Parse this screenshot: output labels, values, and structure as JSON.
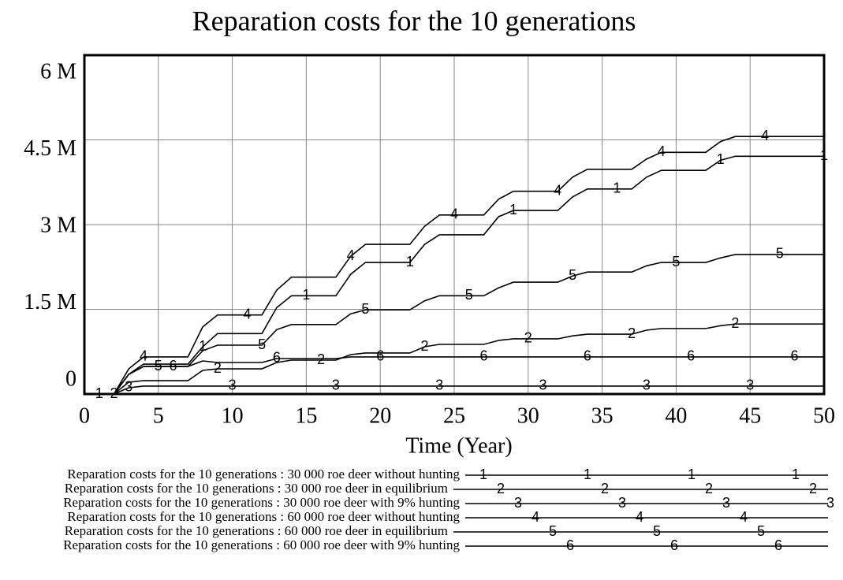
{
  "chart_data": {
    "type": "line",
    "title": "Reparation costs for the 10 generations",
    "xlabel": "Time (Year)",
    "x": [
      0,
      2,
      3,
      4,
      7,
      8,
      9,
      12,
      13,
      14,
      17,
      18,
      19,
      22,
      23,
      24,
      27,
      28,
      29,
      32,
      33,
      34,
      37,
      38,
      39,
      42,
      43,
      44,
      50
    ],
    "xlim": [
      0,
      50
    ],
    "xticks": [
      0,
      5,
      10,
      15,
      20,
      25,
      30,
      35,
      40,
      45,
      50
    ],
    "ylim": [
      0,
      6000000
    ],
    "yticks": [
      {
        "value": 0,
        "label": "0"
      },
      {
        "value": 1500000,
        "label": "1.5 M"
      },
      {
        "value": 3000000,
        "label": "3 M"
      },
      {
        "value": 4500000,
        "label": "4.5 M"
      },
      {
        "value": 6000000,
        "label": "6 M"
      }
    ],
    "grid": true,
    "series": [
      {
        "name": "Reparation costs for the 10 generations : 30 000 roe deer without hunting",
        "marker": "1",
        "color": "#000000",
        "values": [
          0,
          0,
          349000,
          530000,
          530000,
          837000,
          1070000,
          1070000,
          1530000,
          1740000,
          1740000,
          2120000,
          2330000,
          2330000,
          2650000,
          2820000,
          2820000,
          3140000,
          3250000,
          3250000,
          3490000,
          3630000,
          3630000,
          3840000,
          3960000,
          3960000,
          4140000,
          4210000,
          4210000
        ]
      },
      {
        "name": "Reparation costs for the 10 generations : 30 000 roe deer in equilibrium",
        "marker": "2",
        "color": "#000000",
        "values": [
          0,
          0,
          209000,
          237000,
          237000,
          419000,
          446000,
          446000,
          558000,
          600000,
          600000,
          698000,
          726000,
          726000,
          837000,
          879000,
          879000,
          949000,
          977000,
          977000,
          1030000,
          1060000,
          1060000,
          1130000,
          1160000,
          1160000,
          1210000,
          1240000,
          1240000
        ]
      },
      {
        "name": "Reparation costs for the 10 generations : 30 000 roe deer with 9% hunting",
        "marker": "3",
        "color": "#000000",
        "values": [
          0,
          0,
          112000,
          140000,
          140000,
          140000,
          140000,
          140000,
          140000,
          140000,
          140000,
          140000,
          140000,
          140000,
          140000,
          140000,
          140000,
          140000,
          140000,
          140000,
          140000,
          140000,
          140000,
          140000,
          140000,
          140000,
          140000,
          140000,
          140000
        ]
      },
      {
        "name": "Reparation costs for the 10 generations : 60 000 roe deer without hunting",
        "marker": "4",
        "color": "#000000",
        "values": [
          0,
          0,
          446000,
          656000,
          656000,
          1190000,
          1400000,
          1400000,
          1840000,
          2070000,
          2070000,
          2440000,
          2650000,
          2650000,
          2970000,
          3170000,
          3170000,
          3450000,
          3590000,
          3590000,
          3840000,
          3980000,
          3980000,
          4160000,
          4280000,
          4280000,
          4470000,
          4560000,
          4560000
        ]
      },
      {
        "name": "Reparation costs for the 10 generations : 60 000 roe deer in equilibrium",
        "marker": "5",
        "color": "#000000",
        "values": [
          0,
          0,
          349000,
          488000,
          488000,
          767000,
          865000,
          865000,
          1140000,
          1230000,
          1230000,
          1420000,
          1490000,
          1490000,
          1650000,
          1740000,
          1740000,
          1880000,
          1980000,
          1980000,
          2090000,
          2160000,
          2160000,
          2270000,
          2330000,
          2330000,
          2410000,
          2470000,
          2470000
        ]
      },
      {
        "name": "Reparation costs for the 10 generations : 60 000 roe deer with 9% hunting",
        "marker": "6",
        "color": "#000000",
        "values": [
          0,
          0,
          349000,
          488000,
          488000,
          586000,
          558000,
          558000,
          628000,
          628000,
          628000,
          656000,
          656000,
          656000,
          656000,
          656000,
          656000,
          656000,
          656000,
          656000,
          656000,
          656000,
          656000,
          656000,
          656000,
          656000,
          656000,
          656000,
          656000
        ]
      }
    ]
  }
}
